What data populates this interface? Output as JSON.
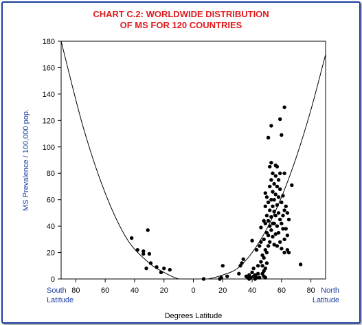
{
  "title_line1": "CHART C.2: WORLDWIDE DISTRIBUTION",
  "title_line2": "OF MS FOR 120 COUNTRIES",
  "chart_data": {
    "type": "scatter",
    "title": "CHART C.2: WORLDWIDE DISTRIBUTION OF MS FOR 120 COUNTRIES",
    "xlabel": "Degrees Latitude",
    "ylabel": "MS Prevalence / 100,000 pop.",
    "x_end_labels": {
      "left": [
        "South",
        "Latitude"
      ],
      "right": [
        "North",
        "Latitude"
      ]
    },
    "x_scale": "signed latitude: negative = south, positive = north; tick labels show absolute degrees",
    "xlim": [
      -90,
      90
    ],
    "ylim": [
      0,
      180
    ],
    "x_ticks": [
      -80,
      -60,
      -40,
      -20,
      0,
      20,
      40,
      60,
      80
    ],
    "x_tick_labels": [
      "80",
      "60",
      "40",
      "20",
      "0",
      "20",
      "40",
      "60",
      "80"
    ],
    "y_ticks": [
      0,
      20,
      40,
      60,
      80,
      100,
      120,
      140,
      160,
      180
    ],
    "y_tick_labels": [
      "0",
      "20",
      "40",
      "60",
      "80",
      "100",
      "120",
      "140",
      "160",
      "180"
    ],
    "grid": false,
    "colors": {
      "title": "#e0191e",
      "ylabel": "#1a3fa0",
      "xend": "#1a3fa0",
      "frame": "#1a3fa0",
      "points": "#000000"
    },
    "trend_curve": {
      "description": "U-shaped curve",
      "points": [
        [
          -90,
          180
        ],
        [
          -75,
          115
        ],
        [
          -60,
          65
        ],
        [
          -45,
          30
        ],
        [
          -30,
          12
        ],
        [
          -20,
          5
        ],
        [
          -10,
          0
        ],
        [
          0,
          -1
        ],
        [
          10,
          0
        ],
        [
          20,
          3
        ],
        [
          30,
          8
        ],
        [
          40,
          20
        ],
        [
          50,
          38
        ],
        [
          60,
          62
        ],
        [
          70,
          92
        ],
        [
          80,
          128
        ],
        [
          90,
          170
        ]
      ]
    },
    "series": [
      {
        "points": [
          [
            -42,
            31
          ],
          [
            -38,
            22
          ],
          [
            -34,
            19
          ],
          [
            -31,
            37
          ],
          [
            -30,
            19
          ],
          [
            -32,
            8
          ],
          [
            -29,
            12
          ],
          [
            -25,
            9
          ],
          [
            -22,
            5
          ],
          [
            -20,
            8
          ],
          [
            -16,
            7
          ],
          [
            -34,
            21
          ],
          [
            7,
            0
          ],
          [
            18,
            0
          ],
          [
            19,
            1
          ],
          [
            20,
            10
          ],
          [
            23,
            2
          ],
          [
            31,
            4
          ],
          [
            32,
            10
          ],
          [
            33,
            12
          ],
          [
            34,
            15
          ],
          [
            36,
            2
          ],
          [
            37,
            1
          ],
          [
            38,
            0
          ],
          [
            38,
            3
          ],
          [
            39,
            1
          ],
          [
            40,
            29
          ],
          [
            40,
            5
          ],
          [
            41,
            8
          ],
          [
            41,
            2
          ],
          [
            42,
            3
          ],
          [
            42,
            0
          ],
          [
            43,
            1
          ],
          [
            43,
            22
          ],
          [
            44,
            10
          ],
          [
            44,
            4
          ],
          [
            45,
            1
          ],
          [
            45,
            25
          ],
          [
            46,
            28
          ],
          [
            46,
            39
          ],
          [
            46,
            13
          ],
          [
            47,
            18
          ],
          [
            47,
            10
          ],
          [
            47,
            4
          ],
          [
            48,
            44
          ],
          [
            48,
            30
          ],
          [
            48,
            16
          ],
          [
            48,
            6
          ],
          [
            48,
            2
          ],
          [
            49,
            65
          ],
          [
            49,
            55
          ],
          [
            49,
            42
          ],
          [
            49,
            22
          ],
          [
            49,
            8
          ],
          [
            49,
            1
          ],
          [
            50,
            62
          ],
          [
            50,
            48
          ],
          [
            50,
            35
          ],
          [
            50,
            20
          ],
          [
            50,
            12
          ],
          [
            51,
            107
          ],
          [
            51,
            58
          ],
          [
            51,
            44
          ],
          [
            51,
            33
          ],
          [
            51,
            25
          ],
          [
            52,
            85
          ],
          [
            52,
            70
          ],
          [
            52,
            52
          ],
          [
            52,
            40
          ],
          [
            52,
            28
          ],
          [
            53,
            116
          ],
          [
            53,
            88
          ],
          [
            53,
            75
          ],
          [
            53,
            60
          ],
          [
            53,
            47
          ],
          [
            53,
            37
          ],
          [
            54,
            80
          ],
          [
            54,
            66
          ],
          [
            54,
            55
          ],
          [
            54,
            42
          ],
          [
            54,
            32
          ],
          [
            55,
            72
          ],
          [
            55,
            60
          ],
          [
            55,
            51
          ],
          [
            55,
            42
          ],
          [
            55,
            26
          ],
          [
            56,
            86
          ],
          [
            56,
            78
          ],
          [
            56,
            64
          ],
          [
            56,
            48
          ],
          [
            56,
            34
          ],
          [
            57,
            85
          ],
          [
            57,
            70
          ],
          [
            57,
            56
          ],
          [
            57,
            40
          ],
          [
            57,
            25
          ],
          [
            58,
            75
          ],
          [
            58,
            62
          ],
          [
            58,
            50
          ],
          [
            58,
            35
          ],
          [
            59,
            121
          ],
          [
            59,
            80
          ],
          [
            59,
            68
          ],
          [
            59,
            45
          ],
          [
            59,
            28
          ],
          [
            60,
            109
          ],
          [
            60,
            58
          ],
          [
            60,
            42
          ],
          [
            60,
            23
          ],
          [
            61,
            63
          ],
          [
            61,
            48
          ],
          [
            61,
            38
          ],
          [
            62,
            130
          ],
          [
            62,
            80
          ],
          [
            62,
            52
          ],
          [
            62,
            30
          ],
          [
            62,
            20
          ],
          [
            63,
            55
          ],
          [
            63,
            38
          ],
          [
            64,
            50
          ],
          [
            64,
            33
          ],
          [
            64,
            22
          ],
          [
            65,
            45
          ],
          [
            65,
            20
          ],
          [
            67,
            71
          ],
          [
            73,
            11
          ]
        ]
      }
    ]
  }
}
